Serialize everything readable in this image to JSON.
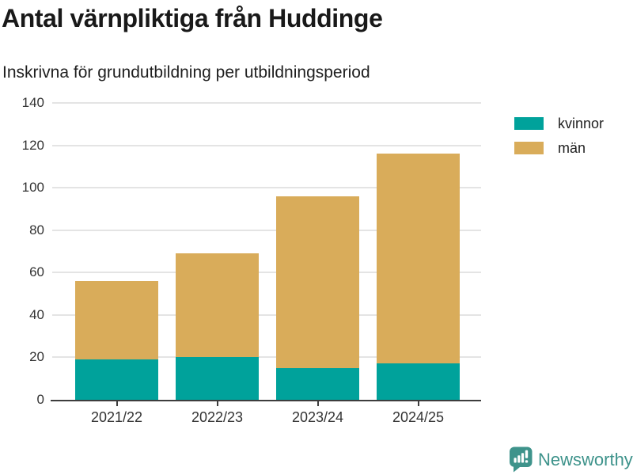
{
  "header": {
    "title": "Antal värnpliktiga från Huddinge",
    "subtitle": "Inskrivna för grundutbildning per utbildningsperiod"
  },
  "chart_data": {
    "type": "bar",
    "stacked": true,
    "title": "Antal värnpliktiga från Huddinge",
    "subtitle": "Inskrivna för grundutbildning per utbildningsperiod",
    "categories": [
      "2021/22",
      "2022/23",
      "2023/24",
      "2024/25"
    ],
    "series": [
      {
        "name": "kvinnor",
        "color": "#00a29b",
        "values": [
          19,
          20,
          15,
          17
        ]
      },
      {
        "name": "män",
        "color": "#d9ac5a",
        "values": [
          37,
          49,
          81,
          99
        ]
      }
    ],
    "totals": [
      56,
      69,
      96,
      116
    ],
    "xlabel": "",
    "ylabel": "",
    "ylim": [
      0,
      140
    ],
    "yticks": [
      0,
      20,
      40,
      60,
      80,
      100,
      120,
      140
    ],
    "grid": true,
    "legend_position": "right"
  },
  "footer": {
    "brand": "Newsworthy",
    "brand_color": "#3e938b"
  }
}
